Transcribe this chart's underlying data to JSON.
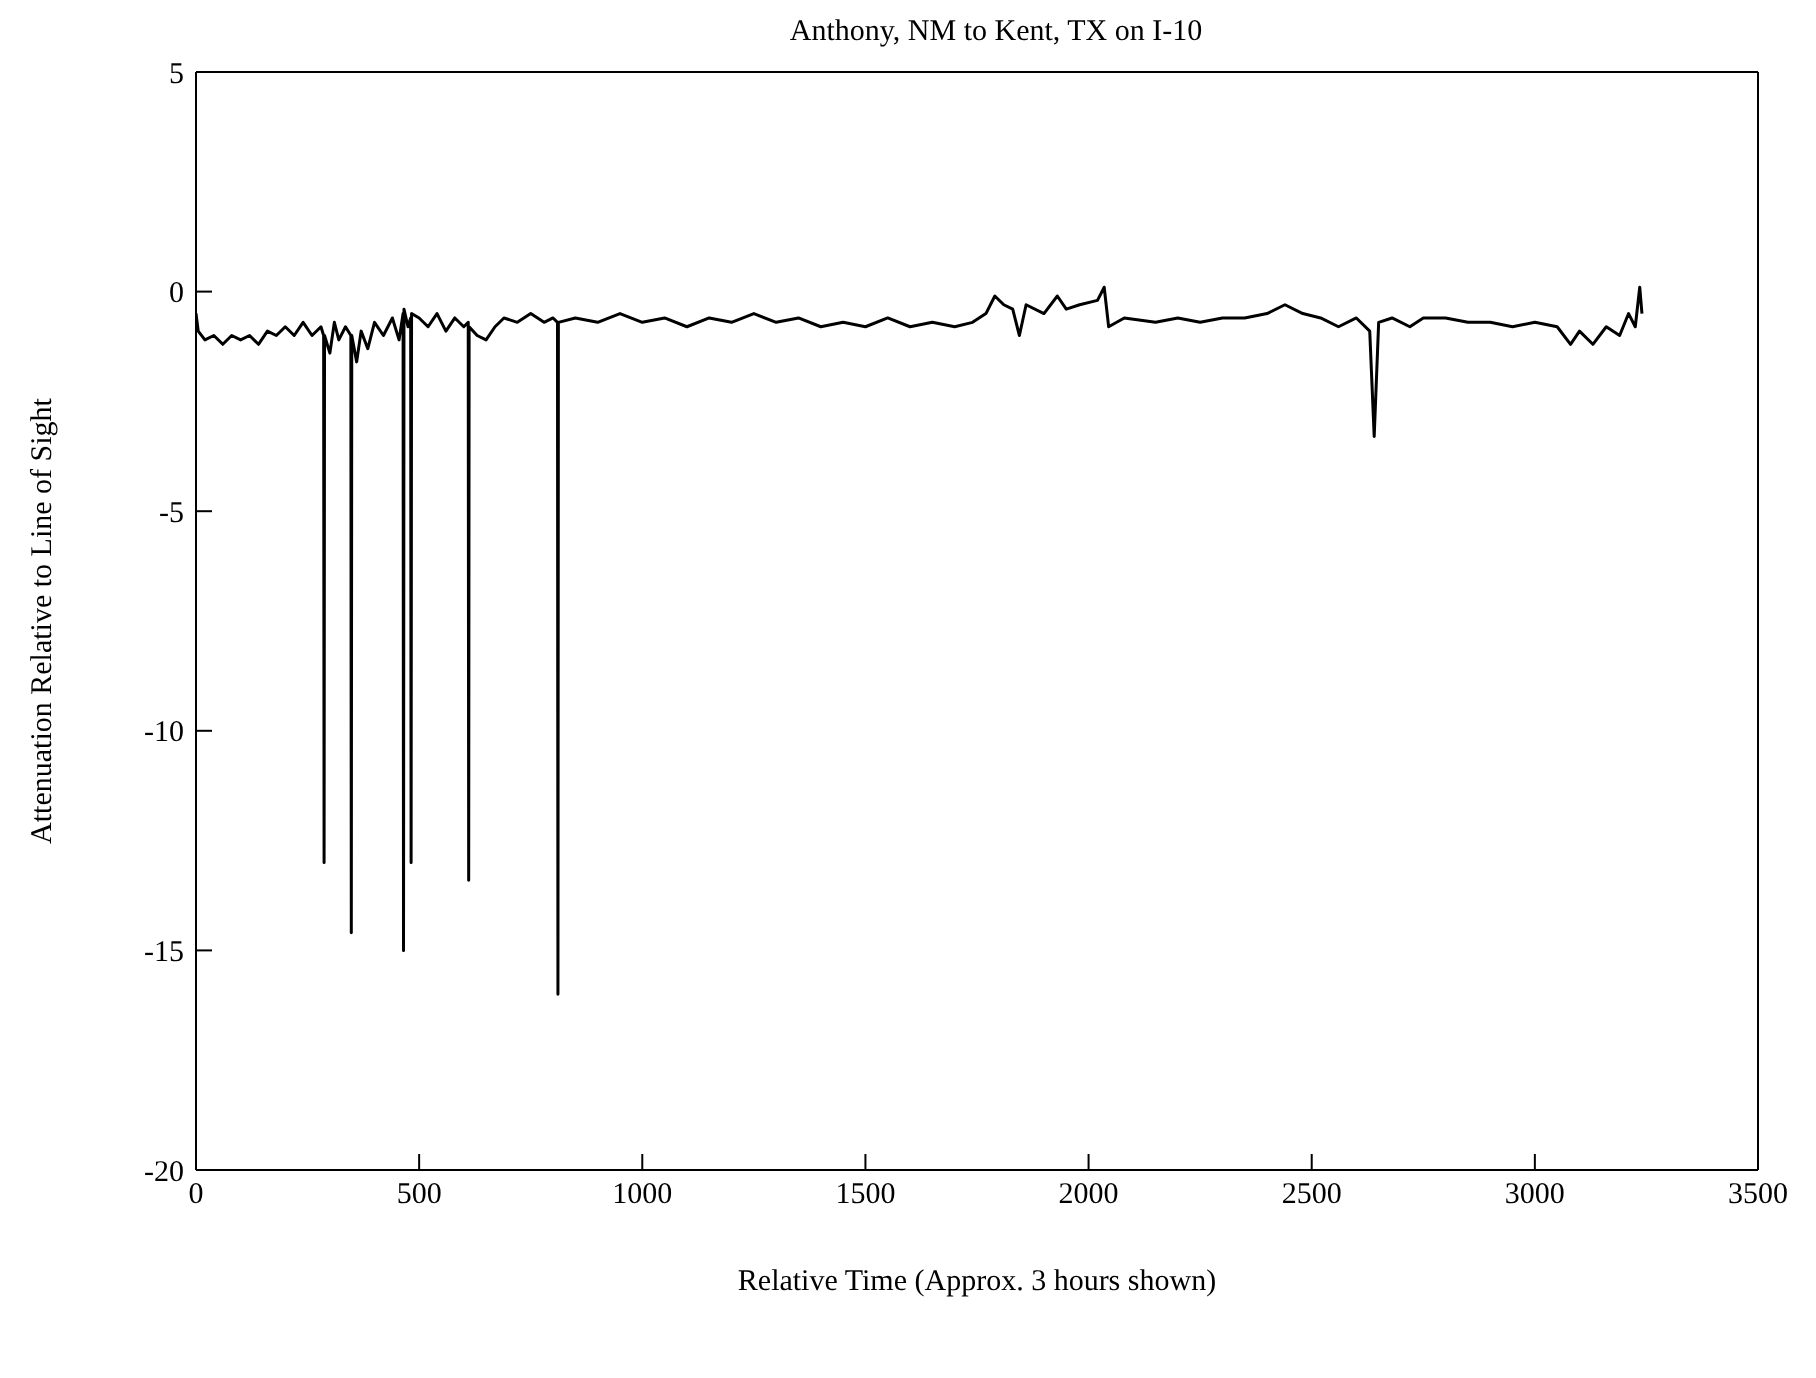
{
  "chart_data": {
    "type": "line",
    "title": "Anthony, NM to Kent, TX on I-10",
    "xlabel": "Relative Time (Approx. 3 hours shown)",
    "ylabel": "Attenuation Relative to Line of Sight",
    "xlim": [
      0,
      3500
    ],
    "xticks": [
      0,
      500,
      1000,
      1500,
      2000,
      2500,
      3000,
      3500
    ],
    "ylim": [
      -20,
      5
    ],
    "yticks": [
      -20,
      -15,
      -10,
      -5,
      0,
      5
    ],
    "legend": false,
    "marker": "none",
    "line_style": "solid",
    "series": [
      {
        "color": "#000000",
        "x": [
          0,
          5,
          20,
          40,
          60,
          80,
          100,
          120,
          140,
          160,
          180,
          200,
          220,
          240,
          260,
          280,
          286,
          287,
          288,
          300,
          310,
          320,
          335,
          347,
          348,
          349,
          360,
          370,
          385,
          400,
          420,
          440,
          455,
          464,
          465,
          466,
          475,
          481,
          482,
          483,
          500,
          520,
          540,
          560,
          580,
          600,
          610,
          611,
          612,
          630,
          650,
          670,
          690,
          720,
          750,
          780,
          800,
          810,
          811,
          812,
          850,
          900,
          950,
          1000,
          1050,
          1100,
          1150,
          1200,
          1250,
          1300,
          1350,
          1400,
          1450,
          1500,
          1550,
          1600,
          1650,
          1700,
          1740,
          1770,
          1790,
          1810,
          1830,
          1845,
          1860,
          1900,
          1930,
          1950,
          1980,
          2020,
          2035,
          2045,
          2080,
          2150,
          2200,
          2250,
          2300,
          2350,
          2400,
          2440,
          2480,
          2520,
          2560,
          2600,
          2630,
          2640,
          2650,
          2680,
          2720,
          2750,
          2800,
          2850,
          2900,
          2950,
          3000,
          3050,
          3080,
          3100,
          3130,
          3160,
          3190,
          3210,
          3225,
          3235,
          3240
        ],
        "values": [
          -0.5,
          -0.9,
          -1.1,
          -1.0,
          -1.2,
          -1.0,
          -1.1,
          -1.0,
          -1.2,
          -0.9,
          -1.0,
          -0.8,
          -1.0,
          -0.7,
          -1.0,
          -0.8,
          -1.0,
          -13.0,
          -1.0,
          -1.4,
          -0.7,
          -1.1,
          -0.8,
          -1.0,
          -14.6,
          -1.0,
          -1.6,
          -0.9,
          -1.3,
          -0.7,
          -1.0,
          -0.6,
          -1.1,
          -0.5,
          -15.0,
          -0.4,
          -0.8,
          -0.6,
          -13.0,
          -0.5,
          -0.6,
          -0.8,
          -0.5,
          -0.9,
          -0.6,
          -0.8,
          -0.7,
          -13.4,
          -0.8,
          -1.0,
          -1.1,
          -0.8,
          -0.6,
          -0.7,
          -0.5,
          -0.7,
          -0.6,
          -0.7,
          -16.0,
          -0.7,
          -0.6,
          -0.7,
          -0.5,
          -0.7,
          -0.6,
          -0.8,
          -0.6,
          -0.7,
          -0.5,
          -0.7,
          -0.6,
          -0.8,
          -0.7,
          -0.8,
          -0.6,
          -0.8,
          -0.7,
          -0.8,
          -0.7,
          -0.5,
          -0.1,
          -0.3,
          -0.4,
          -1.0,
          -0.3,
          -0.5,
          -0.1,
          -0.4,
          -0.3,
          -0.2,
          0.1,
          -0.8,
          -0.6,
          -0.7,
          -0.6,
          -0.7,
          -0.6,
          -0.6,
          -0.5,
          -0.3,
          -0.5,
          -0.6,
          -0.8,
          -0.6,
          -0.9,
          -3.3,
          -0.7,
          -0.6,
          -0.8,
          -0.6,
          -0.6,
          -0.7,
          -0.7,
          -0.8,
          -0.7,
          -0.8,
          -1.2,
          -0.9,
          -1.2,
          -0.8,
          -1.0,
          -0.5,
          -0.8,
          0.1,
          -0.5
        ]
      }
    ]
  }
}
